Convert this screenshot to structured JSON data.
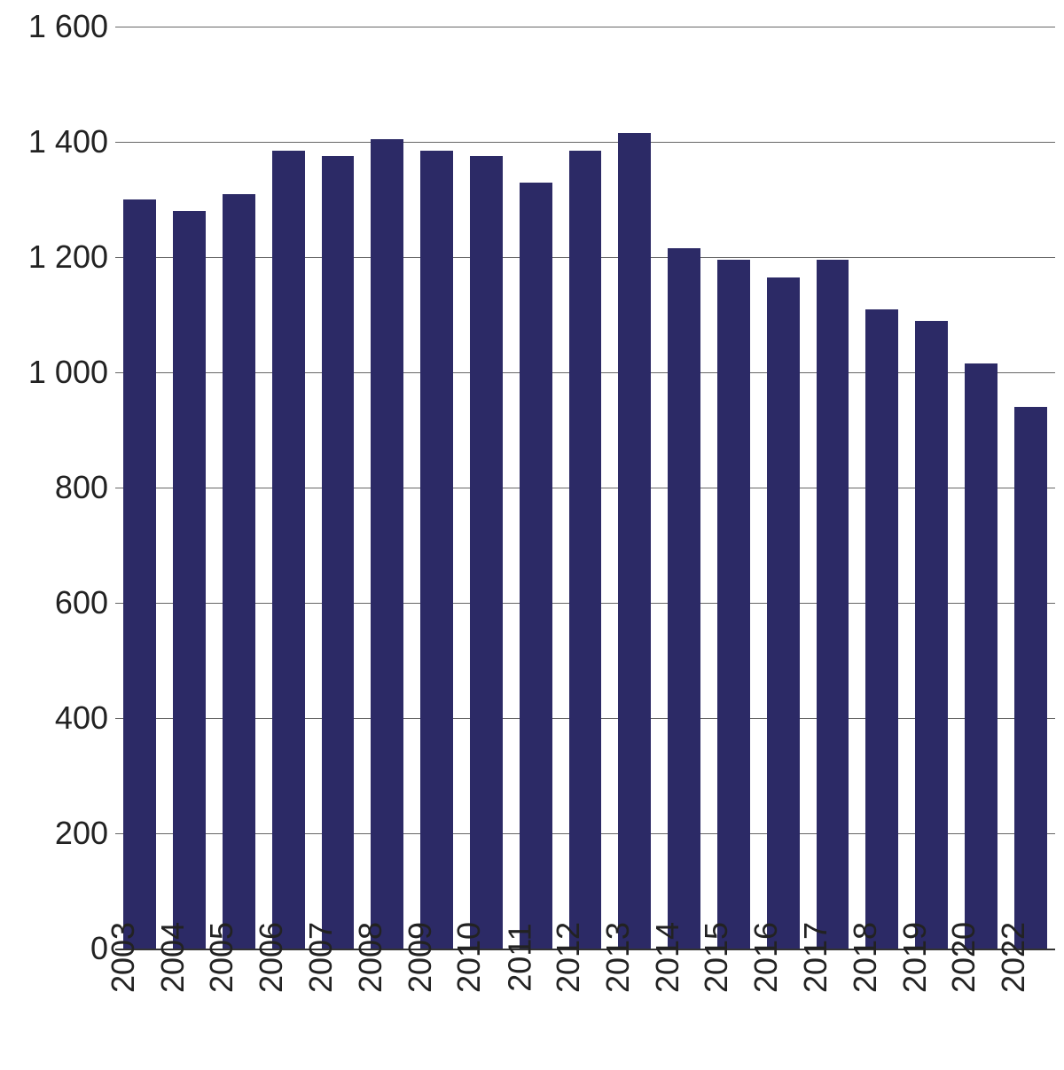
{
  "chart": {
    "type": "bar",
    "categories": [
      "2003",
      "2004",
      "2005",
      "2006",
      "2007",
      "2008",
      "2009",
      "2010",
      "2011",
      "2012",
      "2013",
      "2014",
      "2015",
      "2016",
      "2017",
      "2018",
      "2019",
      "2020",
      "2022"
    ],
    "values": [
      1300,
      1280,
      1310,
      1385,
      1375,
      1405,
      1385,
      1375,
      1330,
      1385,
      1415,
      1215,
      1195,
      1165,
      1195,
      1110,
      1090,
      1015,
      940
    ],
    "bar_color": "#2c2a66",
    "background_color": "#ffffff",
    "grid_color": "#666666",
    "axis_color": "#333333",
    "ylim": [
      0,
      1600
    ],
    "ytick_step": 200,
    "ytick_labels": [
      "0",
      "200",
      "400",
      "600",
      "800",
      "1 000",
      "1 200",
      "1 400",
      "1 600"
    ],
    "tick_fontsize": 36,
    "xlabel_fontsize": 36,
    "xlabel_rotation": -90,
    "bar_width_ratio": 0.66,
    "grid_linewidth": 1
  }
}
